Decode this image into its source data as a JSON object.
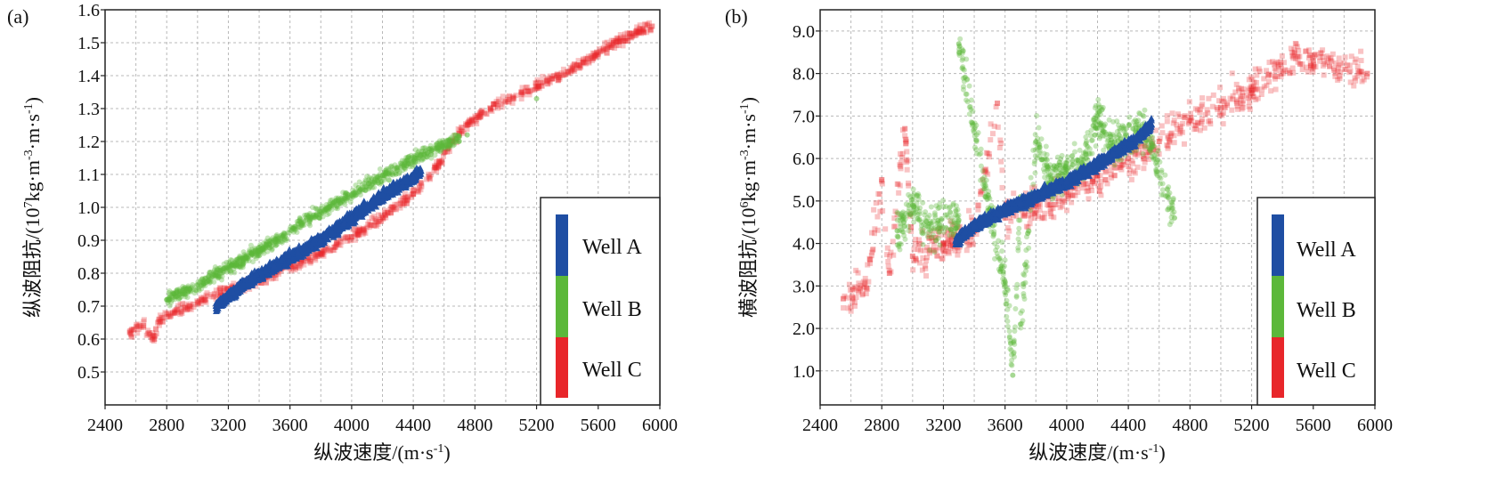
{
  "chart_data": [
    {
      "type": "scatter",
      "panel_label": "(a)",
      "xlabel": "纵波速度/(m·s",
      "xlabel_sup": "-1",
      "xlabel_end": ")",
      "ylabel": "纵波阻抗/(10",
      "ylabel_sup1": "7",
      "ylabel_mid1": "kg·m",
      "ylabel_sup2": "-3",
      "ylabel_mid2": "·m·s",
      "ylabel_sup3": "-1",
      "ylabel_end": ")",
      "xlim": [
        2400,
        6000
      ],
      "ylim": [
        0.4,
        1.6
      ],
      "xticks": [
        2400,
        2800,
        3200,
        3600,
        4000,
        4400,
        4800,
        5200,
        5600,
        6000
      ],
      "yticks": [
        "0.5",
        "0.6",
        "0.7",
        "0.8",
        "0.9",
        "1.0",
        "1.1",
        "1.2",
        "1.3",
        "1.4",
        "1.5",
        "1.6"
      ],
      "grid": true,
      "legend_position": "bottom-right",
      "series": [
        {
          "name": "Well C",
          "color": "#e8262a",
          "marker": "square",
          "points": [
            [
              2560,
              0.62
            ],
            [
              2650,
              0.64
            ],
            [
              2750,
              0.66
            ],
            [
              2850,
              0.68
            ],
            [
              2950,
              0.7
            ],
            [
              3050,
              0.72
            ],
            [
              3150,
              0.74
            ],
            [
              3300,
              0.76
            ],
            [
              3450,
              0.79
            ],
            [
              3600,
              0.82
            ],
            [
              3800,
              0.86
            ],
            [
              4000,
              0.91
            ],
            [
              4200,
              0.97
            ],
            [
              4400,
              1.04
            ],
            [
              4550,
              1.12
            ],
            [
              4650,
              1.2
            ],
            [
              4750,
              1.25
            ],
            [
              4900,
              1.3
            ],
            [
              5100,
              1.35
            ],
            [
              5300,
              1.39
            ],
            [
              5500,
              1.44
            ],
            [
              5700,
              1.5
            ],
            [
              5950,
              1.55
            ],
            [
              2720,
              0.6
            ]
          ]
        },
        {
          "name": "Well B",
          "color": "#5cb83a",
          "marker": "circle",
          "points": [
            [
              2800,
              0.72
            ],
            [
              2950,
              0.75
            ],
            [
              3100,
              0.79
            ],
            [
              3250,
              0.83
            ],
            [
              3400,
              0.87
            ],
            [
              3550,
              0.91
            ],
            [
              3700,
              0.96
            ],
            [
              3850,
              1.0
            ],
            [
              4000,
              1.04
            ],
            [
              4150,
              1.08
            ],
            [
              4300,
              1.12
            ],
            [
              4450,
              1.16
            ],
            [
              4600,
              1.19
            ],
            [
              5200,
              1.33
            ],
            [
              4750,
              1.22
            ]
          ]
        },
        {
          "name": "Well A",
          "color": "#1f4ea3",
          "marker": "triangle",
          "points": [
            [
              3120,
              0.7
            ],
            [
              3230,
              0.74
            ],
            [
              3350,
              0.78
            ],
            [
              3500,
              0.82
            ],
            [
              3650,
              0.86
            ],
            [
              3800,
              0.9
            ],
            [
              3950,
              0.95
            ],
            [
              4100,
              1.0
            ],
            [
              4250,
              1.05
            ],
            [
              4400,
              1.09
            ],
            [
              4450,
              1.11
            ]
          ]
        }
      ]
    },
    {
      "type": "scatter",
      "panel_label": "(b)",
      "xlabel": "纵波速度/(m·s",
      "xlabel_sup": "-1",
      "xlabel_end": ")",
      "ylabel": "横波阻抗/(10",
      "ylabel_sup1": "6",
      "ylabel_mid1": "kg·m",
      "ylabel_sup2": "-3",
      "ylabel_mid2": "·m·s",
      "ylabel_sup3": "-1",
      "ylabel_end": ")",
      "xlim": [
        2400,
        6000
      ],
      "ylim": [
        0.2,
        9.5
      ],
      "xticks": [
        2400,
        2800,
        3200,
        3600,
        4000,
        4400,
        4800,
        5200,
        5600,
        6000
      ],
      "yticks": [
        "1.0",
        "2.0",
        "3.0",
        "4.0",
        "5.0",
        "6.0",
        "7.0",
        "8.0",
        "9.0"
      ],
      "grid": true,
      "legend_position": "bottom-right",
      "series": [
        {
          "name": "Well C",
          "color": "#e8262a",
          "marker": "square",
          "points": [
            [
              2550,
              2.7
            ],
            [
              2700,
              2.95
            ],
            [
              2850,
              3.3
            ],
            [
              3000,
              3.7
            ],
            [
              3200,
              4.0
            ],
            [
              3400,
              4.3
            ],
            [
              3600,
              4.6
            ],
            [
              3800,
              4.9
            ],
            [
              4000,
              5.2
            ],
            [
              4200,
              5.6
            ],
            [
              4400,
              6.0
            ],
            [
              4600,
              6.4
            ],
            [
              4800,
              6.9
            ],
            [
              5000,
              7.2
            ],
            [
              5200,
              7.6
            ],
            [
              5500,
              8.4
            ],
            [
              5600,
              8.3
            ],
            [
              5950,
              8.0
            ],
            [
              2800,
              5.5
            ],
            [
              2950,
              6.7
            ],
            [
              3550,
              7.3
            ]
          ]
        },
        {
          "name": "Well B",
          "color": "#5cb83a",
          "marker": "circle",
          "points": [
            [
              2900,
              4.3
            ],
            [
              3100,
              4.4
            ],
            [
              3300,
              4.55
            ],
            [
              3500,
              4.8
            ],
            [
              3700,
              5.1
            ],
            [
              3900,
              5.5
            ],
            [
              4100,
              5.9
            ],
            [
              4300,
              6.3
            ],
            [
              4500,
              6.7
            ],
            [
              3000,
              4.9
            ],
            [
              3800,
              6.4
            ],
            [
              4200,
              7.0
            ],
            [
              3300,
              8.7
            ],
            [
              3700,
              2.1
            ],
            [
              3650,
              0.9
            ],
            [
              4700,
              4.6
            ],
            [
              3600,
              3.1
            ]
          ]
        },
        {
          "name": "Well A",
          "color": "#1f4ea3",
          "marker": "triangle",
          "points": [
            [
              3280,
              4.05
            ],
            [
              3400,
              4.4
            ],
            [
              3550,
              4.7
            ],
            [
              3700,
              4.95
            ],
            [
              3850,
              5.2
            ],
            [
              4000,
              5.45
            ],
            [
              4150,
              5.75
            ],
            [
              4300,
              6.1
            ],
            [
              4450,
              6.45
            ],
            [
              4550,
              6.8
            ]
          ]
        }
      ]
    }
  ]
}
